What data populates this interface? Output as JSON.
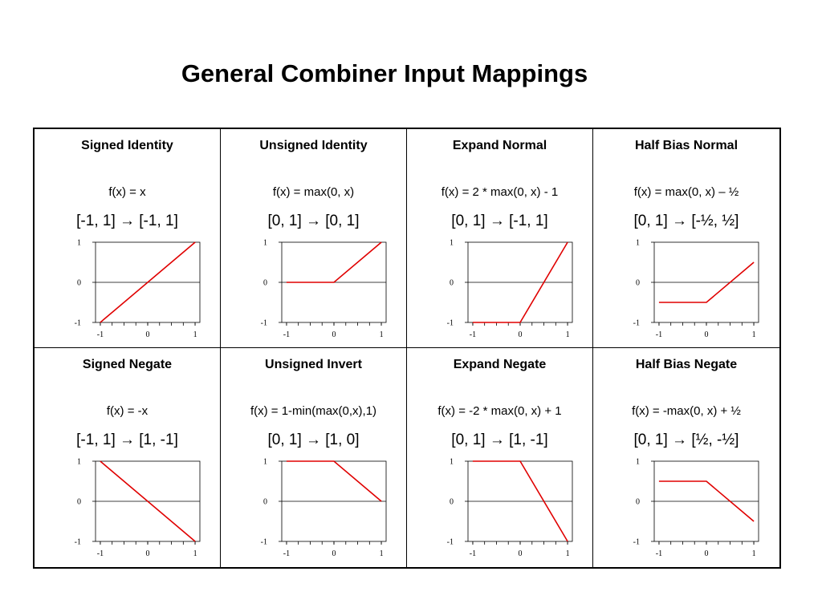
{
  "title": "General Combiner Input Mappings",
  "cells": [
    {
      "title": "Signed Identity",
      "formula": "f(x) = x",
      "domain": "[-1, 1]",
      "arrow": "→",
      "range": "[-1, 1]",
      "plot": {
        "points": [
          [
            -1,
            -1
          ],
          [
            1,
            1
          ]
        ]
      }
    },
    {
      "title": "Unsigned Identity",
      "formula": "f(x) = max(0, x)",
      "domain": "[0, 1]",
      "arrow": "→",
      "range": "[0, 1]",
      "plot": {
        "points": [
          [
            -1,
            0
          ],
          [
            0,
            0
          ],
          [
            1,
            1
          ]
        ]
      }
    },
    {
      "title": "Expand Normal",
      "formula": "f(x) = 2 * max(0, x) - 1",
      "domain": "[0, 1]",
      "arrow": "→",
      "range": "[-1, 1]",
      "plot": {
        "points": [
          [
            -1,
            -1
          ],
          [
            0,
            -1
          ],
          [
            1,
            1
          ]
        ]
      }
    },
    {
      "title": "Half Bias Normal",
      "formula": "f(x) = max(0, x) – ½",
      "domain": "[0, 1]",
      "arrow": "→",
      "range": "[-½, ½]",
      "plot": {
        "points": [
          [
            -1,
            -0.5
          ],
          [
            0,
            -0.5
          ],
          [
            1,
            0.5
          ]
        ]
      }
    },
    {
      "title": "Signed Negate",
      "formula": "f(x) = -x",
      "domain": "[-1, 1]",
      "arrow": "→",
      "range": "[1, -1]",
      "plot": {
        "points": [
          [
            -1,
            1
          ],
          [
            1,
            -1
          ]
        ]
      }
    },
    {
      "title": "Unsigned Invert",
      "formula": "f(x) = 1-min(max(0,x),1)",
      "domain": "[0, 1]",
      "arrow": "→",
      "range": "[1, 0]",
      "plot": {
        "points": [
          [
            -1,
            1
          ],
          [
            0,
            1
          ],
          [
            1,
            0
          ]
        ]
      }
    },
    {
      "title": "Expand Negate",
      "formula": "f(x) = -2 * max(0, x) + 1",
      "domain": "[0, 1]",
      "arrow": "→",
      "range": "[1, -1]",
      "plot": {
        "points": [
          [
            -1,
            1
          ],
          [
            0,
            1
          ],
          [
            1,
            -1
          ]
        ]
      }
    },
    {
      "title": "Half Bias Negate",
      "formula": "f(x) = -max(0, x) + ½",
      "domain": "[0, 1]",
      "arrow": "→",
      "range": "[½, -½]",
      "plot": {
        "points": [
          [
            -1,
            0.5
          ],
          [
            0,
            0.5
          ],
          [
            1,
            -0.5
          ]
        ]
      }
    }
  ],
  "axes": {
    "xlim": [
      -1.1,
      1.1
    ],
    "ylim": [
      -1,
      1
    ],
    "x_ticks": [
      -1,
      0,
      1
    ],
    "x_tick_labels": [
      "-1",
      "0",
      "1"
    ],
    "y_ticks": [
      1,
      0,
      -1
    ],
    "y_tick_labels": [
      "1",
      "0",
      "-1"
    ],
    "minor_x_step": 0.25
  },
  "colors": {
    "curve": "#e00000",
    "axis": "#000000"
  }
}
